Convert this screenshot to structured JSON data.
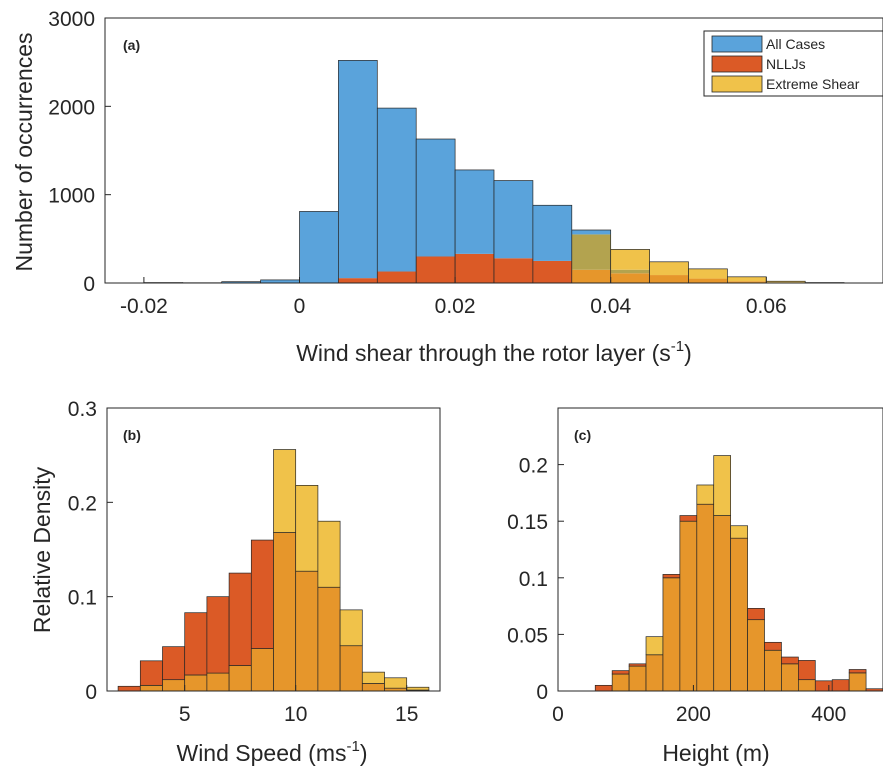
{
  "colors": {
    "all_cases": "#5aa3db",
    "nlljs": "#db5a26",
    "extreme_shear": "#f0c24a",
    "overlap": "#e6962b",
    "overlap_all_extreme": "#b3a34f"
  },
  "chart_data": [
    {
      "id": "a",
      "type": "bar",
      "panel_label": "(a)",
      "xlabel": "Wind shear through the rotor layer (s",
      "xlabel_sup": "-1",
      "xlabel_end": ")",
      "ylabel": "Number of occurrences",
      "xlim": [
        -0.025,
        0.075
      ],
      "ylim": [
        0,
        3000
      ],
      "xticks": [
        -0.02,
        0,
        0.02,
        0.04,
        0.06
      ],
      "xtick_labels": [
        "-0.02",
        "0",
        "0.02",
        "0.04",
        "0.06"
      ],
      "yticks": [
        0,
        1000,
        2000,
        3000
      ],
      "ytick_labels": [
        "0",
        "1000",
        "2000",
        "3000"
      ],
      "bin_edges": [
        -0.02,
        -0.015,
        -0.01,
        -0.005,
        0.0,
        0.005,
        0.01,
        0.015,
        0.02,
        0.025,
        0.03,
        0.035,
        0.04,
        0.045,
        0.05,
        0.055,
        0.06,
        0.065,
        0.07
      ],
      "legend": [
        "All Cases",
        "NLLJs",
        "Extreme Shear"
      ],
      "legend_position": "top-right",
      "series": [
        {
          "name": "All Cases",
          "color_key": "all_cases",
          "values": [
            5,
            3,
            15,
            35,
            810,
            2520,
            1980,
            1630,
            1280,
            1160,
            880,
            600,
            150,
            90,
            50,
            20,
            8,
            3
          ]
        },
        {
          "name": "NLLJs",
          "color_key": "nlljs",
          "values": [
            0,
            0,
            0,
            0,
            0,
            55,
            130,
            300,
            330,
            280,
            250,
            150,
            110,
            90,
            70,
            30,
            5,
            0
          ]
        },
        {
          "name": "Extreme Shear",
          "color_key": "extreme_shear",
          "values": [
            0,
            0,
            0,
            0,
            0,
            0,
            0,
            0,
            0,
            0,
            0,
            550,
            380,
            240,
            160,
            70,
            20,
            5
          ]
        }
      ]
    },
    {
      "id": "b",
      "type": "bar",
      "panel_label": "(b)",
      "xlabel": "Wind Speed (ms",
      "xlabel_sup": "-1",
      "xlabel_end": ")",
      "ylabel": "Relative Density",
      "xlim": [
        1.5,
        16.5
      ],
      "ylim": [
        0,
        0.3
      ],
      "xticks": [
        5,
        10,
        15
      ],
      "xtick_labels": [
        "5",
        "10",
        "15"
      ],
      "yticks": [
        0,
        0.1,
        0.2,
        0.3
      ],
      "ytick_labels": [
        "0",
        "0.1",
        "0.2",
        "0.3"
      ],
      "bin_edges": [
        2,
        3,
        4,
        5,
        6,
        7,
        8,
        9,
        10,
        11,
        12,
        13,
        14,
        15,
        16
      ],
      "series": [
        {
          "name": "NLLJs",
          "color_key": "nlljs",
          "values": [
            0.005,
            0.032,
            0.047,
            0.083,
            0.1,
            0.125,
            0.16,
            0.168,
            0.127,
            0.11,
            0.048,
            0.008,
            0.003,
            0.001
          ]
        },
        {
          "name": "Extreme Shear",
          "color_key": "extreme_shear",
          "values": [
            0.0,
            0.006,
            0.012,
            0.017,
            0.019,
            0.027,
            0.045,
            0.256,
            0.218,
            0.18,
            0.086,
            0.02,
            0.014,
            0.004
          ]
        }
      ]
    },
    {
      "id": "c",
      "type": "bar",
      "panel_label": "(c)",
      "xlabel": "Height (m)",
      "ylabel": "",
      "xlim": [
        0,
        480
      ],
      "ylim": [
        0,
        0.25
      ],
      "xticks": [
        0,
        200,
        400
      ],
      "xtick_labels": [
        "0",
        "200",
        "400"
      ],
      "yticks": [
        0,
        0.05,
        0.1,
        0.15,
        0.2
      ],
      "ytick_labels": [
        "0",
        "0.05",
        "0.1",
        "0.15",
        "0.2"
      ],
      "bin_edges": [
        55,
        80,
        105,
        130,
        155,
        180,
        205,
        230,
        255,
        280,
        305,
        330,
        355,
        380,
        405,
        430,
        455,
        480
      ],
      "series": [
        {
          "name": "NLLJs",
          "color_key": "nlljs",
          "values": [
            0.005,
            0.018,
            0.024,
            0.032,
            0.103,
            0.155,
            0.165,
            0.155,
            0.135,
            0.073,
            0.043,
            0.03,
            0.027,
            0.009,
            0.01,
            0.019,
            0.002
          ]
        },
        {
          "name": "Extreme Shear",
          "color_key": "extreme_shear",
          "values": [
            0.0,
            0.015,
            0.022,
            0.048,
            0.1,
            0.15,
            0.182,
            0.208,
            0.146,
            0.063,
            0.036,
            0.024,
            0.01,
            0.0,
            0.0,
            0.016,
            0.0
          ]
        }
      ]
    }
  ]
}
